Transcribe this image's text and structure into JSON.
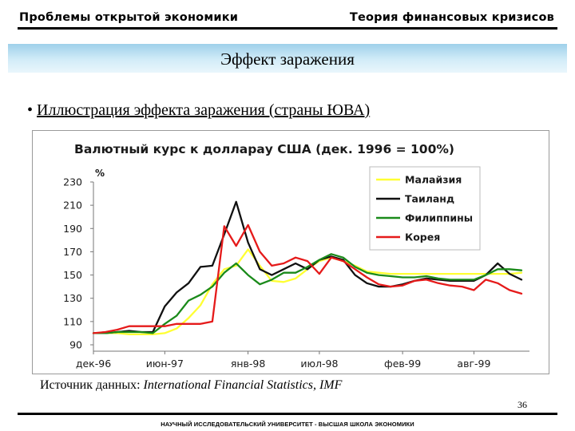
{
  "header": {
    "left": "Проблемы открытой экономики",
    "right": "Теория финансовых кризисов"
  },
  "slide": {
    "title": "Эффект заражения",
    "bullet_mark": "•",
    "bullet": "Иллюстрация эффекта заражения (страны ЮВА)"
  },
  "source": {
    "prefix": "Источник данных: ",
    "name": "International Financial Statistics, IMF"
  },
  "page_number": "36",
  "footer": "НАУЧНЫЙ ИССЛЕДОВАТЕЛЬСКИЙ УНИВЕРСИТЕТ - ВЫСШАЯ ШКОЛА ЭКОНОМИКИ",
  "banner_colors": [
    "#9fd0ea",
    "#e9f6fc"
  ],
  "chart_data": {
    "type": "line",
    "title": "Валютный курс к доллараy США (дек. 1996 = 100%)",
    "ylabel": "%",
    "ylim": [
      90,
      230
    ],
    "yticks": [
      90,
      110,
      130,
      150,
      170,
      190,
      210,
      230
    ],
    "xticks": [
      {
        "label": "дек-96",
        "i": 0
      },
      {
        "label": "июн-97",
        "i": 6
      },
      {
        "label": "янв-98",
        "i": 13
      },
      {
        "label": "июл-98",
        "i": 19
      },
      {
        "label": "фев-99",
        "i": 26
      },
      {
        "label": "авг-99",
        "i": 32
      }
    ],
    "n_points": 37,
    "legend_position": "top-right",
    "grid": false,
    "series": [
      {
        "name": "Малайзия",
        "color": "#ffff33",
        "values": [
          100,
          100,
          100,
          99,
          99,
          99,
          100,
          104,
          113,
          124,
          142,
          155,
          158,
          172,
          158,
          145,
          144,
          147,
          155,
          162,
          165,
          162,
          158,
          153,
          152,
          151,
          151,
          151,
          151,
          151,
          151,
          151,
          151,
          151,
          151,
          151,
          152
        ]
      },
      {
        "name": "Таиланд",
        "color": "#111111",
        "values": [
          100,
          100,
          101,
          102,
          101,
          101,
          123,
          135,
          143,
          157,
          158,
          185,
          213,
          178,
          155,
          150,
          155,
          160,
          155,
          163,
          166,
          163,
          150,
          143,
          140,
          140,
          142,
          145,
          147,
          146,
          145,
          145,
          145,
          150,
          160,
          151,
          146
        ]
      },
      {
        "name": "Филиппины",
        "color": "#1a8a1a",
        "values": [
          100,
          100,
          101,
          101,
          101,
          100,
          108,
          115,
          128,
          133,
          140,
          152,
          160,
          150,
          142,
          146,
          152,
          152,
          157,
          163,
          168,
          165,
          157,
          152,
          150,
          149,
          148,
          148,
          149,
          147,
          146,
          146,
          146,
          150,
          155,
          155,
          154
        ]
      },
      {
        "name": "Корея",
        "color": "#e51a1a",
        "values": [
          100,
          101,
          103,
          106,
          106,
          106,
          106,
          108,
          108,
          108,
          110,
          192,
          175,
          193,
          170,
          158,
          160,
          165,
          162,
          151,
          165,
          162,
          155,
          148,
          142,
          140,
          141,
          145,
          146,
          143,
          141,
          140,
          137,
          146,
          143,
          137,
          134
        ]
      }
    ]
  }
}
